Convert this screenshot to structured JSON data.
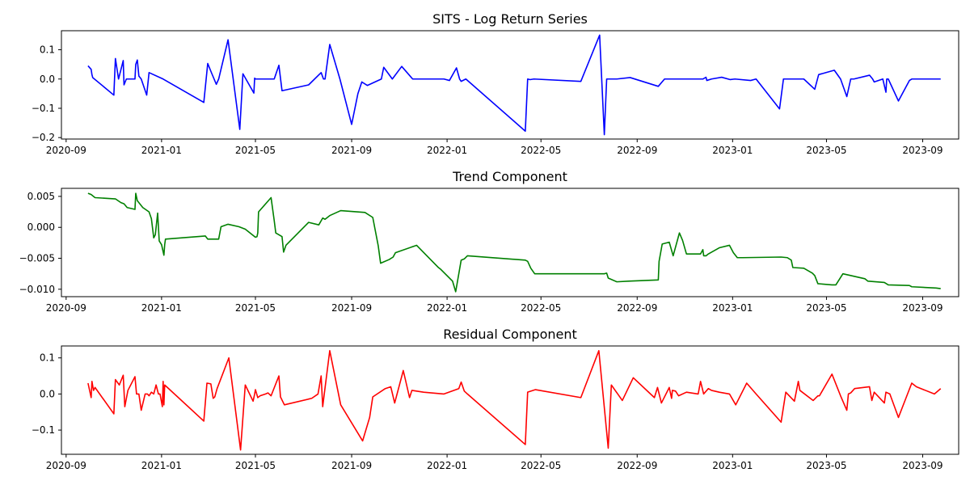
{
  "chart_data": [
    {
      "type": "line",
      "title": "SITS - Log Return Series",
      "color": "#0000ff",
      "xlim": [
        "2020-08-26",
        "2023-10-17"
      ],
      "ylim": [
        -0.205,
        0.165
      ],
      "yticks": [
        -0.2,
        -0.1,
        0.0,
        0.1
      ],
      "ytick_labels": [
        "−0.2",
        "−0.1",
        "0.0",
        "0.1"
      ],
      "xticks": [
        "2020-09-01",
        "2021-01-01",
        "2021-05-01",
        "2021-09-01",
        "2022-01-01",
        "2022-05-01",
        "2022-09-01",
        "2023-01-01",
        "2023-05-01",
        "2023-09-01"
      ],
      "xtick_labels": [
        "2020-09",
        "2021-01",
        "2021-05",
        "2021-09",
        "2022-01",
        "2022-05",
        "2022-09",
        "2023-01",
        "2023-05",
        "2023-09"
      ],
      "x": [
        "2020-09-29",
        "2020-10-03",
        "2020-10-04",
        "2020-10-05",
        "2020-11-01",
        "2020-11-03",
        "2020-11-07",
        "2020-11-13",
        "2020-11-14",
        "2020-11-17",
        "2020-11-28",
        "2020-11-29",
        "2020-12-01",
        "2020-12-03",
        "2020-12-06",
        "2020-12-13",
        "2020-12-16",
        "2021-01-03",
        "2021-02-24",
        "2021-03-01",
        "2021-03-06",
        "2021-03-12",
        "2021-03-15",
        "2021-03-27",
        "2021-04-11",
        "2021-04-15",
        "2021-04-29",
        "2021-04-30",
        "2021-05-01",
        "2021-05-25",
        "2021-05-31",
        "2021-06-04",
        "2021-07-08",
        "2021-07-24",
        "2021-07-27",
        "2021-07-29",
        "2021-08-04",
        "2021-08-17",
        "2021-09-01",
        "2021-09-09",
        "2021-09-14",
        "2021-09-21",
        "2021-10-09",
        "2021-10-12",
        "2021-10-23",
        "2021-11-04",
        "2021-11-18",
        "2021-12-28",
        "2022-01-04",
        "2022-01-13",
        "2022-01-17",
        "2022-01-19",
        "2022-01-25",
        "2022-04-11",
        "2022-04-14",
        "2022-04-17",
        "2022-04-22",
        "2022-06-21",
        "2022-07-15",
        "2022-07-21",
        "2022-07-24",
        "2022-08-06",
        "2022-08-23",
        "2022-09-28",
        "2022-10-06",
        "2022-10-22",
        "2022-11-24",
        "2022-11-28",
        "2022-11-29",
        "2022-12-05",
        "2022-12-18",
        "2022-12-29",
        "2023-01-04",
        "2023-01-24",
        "2023-01-31",
        "2023-03-02",
        "2023-03-07",
        "2023-04-02",
        "2023-04-16",
        "2023-04-20",
        "2023-04-21",
        "2023-05-11",
        "2023-05-19",
        "2023-05-27",
        "2023-06-01",
        "2023-06-05",
        "2023-06-25",
        "2023-06-29",
        "2023-07-01",
        "2023-07-12",
        "2023-07-16",
        "2023-07-17",
        "2023-07-19",
        "2023-08-01",
        "2023-08-15",
        "2023-08-18",
        "2023-09-18",
        "2023-09-24"
      ],
      "y": [
        0.045,
        0.033,
        0.015,
        0.005,
        -0.055,
        0.07,
        0.0,
        0.063,
        -0.02,
        0.0,
        0.0,
        0.05,
        0.065,
        0.01,
        0.0,
        -0.055,
        0.022,
        0.0,
        -0.08,
        0.053,
        0.02,
        -0.018,
        0.0,
        0.134,
        -0.172,
        0.018,
        -0.048,
        0.003,
        0.0,
        0.0,
        0.047,
        -0.04,
        -0.02,
        0.022,
        0.0,
        0.0,
        0.118,
        0.0,
        -0.155,
        -0.05,
        -0.01,
        -0.022,
        0.0,
        0.04,
        0.0,
        0.043,
        0.0,
        0.0,
        -0.005,
        0.038,
        0.0,
        -0.008,
        0.0,
        -0.178,
        0.0,
        -0.002,
        0.0,
        -0.008,
        0.15,
        -0.19,
        0.0,
        0.0,
        0.005,
        -0.025,
        0.0,
        0.0,
        0.0,
        0.006,
        -0.005,
        0.0,
        0.006,
        -0.002,
        0.0,
        -0.005,
        0.0,
        -0.102,
        0.0,
        0.0,
        -0.035,
        0.005,
        0.015,
        0.03,
        0.0,
        -0.06,
        0.0,
        0.0,
        0.013,
        0.0,
        -0.01,
        0.0,
        -0.045,
        0.0,
        0.0,
        -0.075,
        -0.005,
        0.0,
        0.0,
        0.0
      ]
    },
    {
      "type": "line",
      "title": "Trend Component",
      "color": "#008000",
      "xlim": [
        "2020-08-26",
        "2023-10-17"
      ],
      "ylim": [
        -0.0112,
        0.0063
      ],
      "yticks": [
        -0.01,
        -0.005,
        0.0,
        0.005
      ],
      "ytick_labels": [
        "−0.010",
        "−0.005",
        "0.000",
        "0.005"
      ],
      "xticks": [
        "2020-09-01",
        "2021-01-01",
        "2021-05-01",
        "2021-09-01",
        "2022-01-01",
        "2022-05-01",
        "2022-09-01",
        "2023-01-01",
        "2023-05-01",
        "2023-09-01"
      ],
      "xtick_labels": [
        "2020-09",
        "2021-01",
        "2021-05",
        "2021-09",
        "2022-01",
        "2022-05",
        "2022-09",
        "2023-01",
        "2023-05",
        "2023-09"
      ],
      "x": [
        "2020-09-29",
        "2020-10-03",
        "2020-10-06",
        "2020-10-08",
        "2020-11-03",
        "2020-11-10",
        "2020-11-14",
        "2020-11-18",
        "2020-11-28",
        "2020-11-29",
        "2020-12-01",
        "2020-12-08",
        "2020-12-16",
        "2020-12-19",
        "2020-12-22",
        "2020-12-24",
        "2020-12-27",
        "2020-12-29",
        "2021-01-01",
        "2021-01-04",
        "2021-01-05",
        "2021-01-06",
        "2021-02-26",
        "2021-03-01",
        "2021-03-15",
        "2021-03-18",
        "2021-03-27",
        "2021-04-10",
        "2021-04-18",
        "2021-05-01",
        "2021-05-03",
        "2021-05-04",
        "2021-05-05",
        "2021-05-21",
        "2021-05-25",
        "2021-05-27",
        "2021-06-04",
        "2021-06-06",
        "2021-06-09",
        "2021-07-08",
        "2021-07-21",
        "2021-07-26",
        "2021-07-29",
        "2021-08-04",
        "2021-08-18",
        "2021-09-18",
        "2021-09-28",
        "2021-10-05",
        "2021-10-08",
        "2021-10-19",
        "2021-10-24",
        "2021-10-27",
        "2021-11-23",
        "2021-12-21",
        "2021-12-24",
        "2022-01-08",
        "2022-01-12",
        "2022-01-19",
        "2022-01-23",
        "2022-01-27",
        "2022-04-11",
        "2022-04-14",
        "2022-04-18",
        "2022-04-23",
        "2022-07-21",
        "2022-07-24",
        "2022-07-26",
        "2022-08-06",
        "2022-08-21",
        "2022-09-28",
        "2022-09-29",
        "2022-10-03",
        "2022-10-12",
        "2022-10-17",
        "2022-10-25",
        "2022-10-29",
        "2022-11-03",
        "2022-11-21",
        "2022-11-24",
        "2022-11-25",
        "2022-11-28",
        "2022-12-01",
        "2022-12-15",
        "2022-12-28",
        "2023-01-02",
        "2023-01-07",
        "2023-01-14",
        "2023-03-04",
        "2023-03-12",
        "2023-03-17",
        "2023-03-19",
        "2023-04-02",
        "2023-04-13",
        "2023-04-16",
        "2023-04-20",
        "2023-05-08",
        "2023-05-13",
        "2023-05-18",
        "2023-05-22",
        "2023-06-19",
        "2023-06-23",
        "2023-07-14",
        "2023-07-19",
        "2023-08-15",
        "2023-08-18",
        "2023-09-18",
        "2023-09-24"
      ],
      "y": [
        0.0055,
        0.0053,
        0.005,
        0.0048,
        0.0046,
        0.004,
        0.0038,
        0.0032,
        0.0029,
        0.0055,
        0.0043,
        0.0032,
        0.0025,
        0.0014,
        -0.0017,
        -0.0012,
        0.0023,
        -0.0022,
        -0.0028,
        -0.0045,
        -0.0028,
        -0.0019,
        -0.0014,
        -0.0019,
        -0.0019,
        0.0001,
        0.0005,
        0.0001,
        -0.0003,
        -0.0016,
        -0.0015,
        -0.0009,
        0.0025,
        0.0048,
        0.0011,
        -0.0009,
        -0.0015,
        -0.004,
        -0.0029,
        0.0008,
        0.0004,
        0.0015,
        0.0013,
        0.0019,
        0.0027,
        0.0024,
        0.0016,
        -0.003,
        -0.0058,
        -0.0052,
        -0.0048,
        -0.0041,
        -0.0029,
        -0.0065,
        -0.0068,
        -0.0087,
        -0.0104,
        -0.0053,
        -0.0051,
        -0.0046,
        -0.0053,
        -0.0055,
        -0.0066,
        -0.0075,
        -0.0075,
        -0.0074,
        -0.0082,
        -0.0088,
        -0.0087,
        -0.0085,
        -0.0055,
        -0.0027,
        -0.0024,
        -0.0046,
        -0.0009,
        -0.0021,
        -0.0043,
        -0.0043,
        -0.0036,
        -0.0046,
        -0.0046,
        -0.0043,
        -0.0033,
        -0.0029,
        -0.0041,
        -0.0049,
        -0.0049,
        -0.0048,
        -0.0049,
        -0.0053,
        -0.0065,
        -0.0066,
        -0.0074,
        -0.0078,
        -0.0091,
        -0.0093,
        -0.0093,
        -0.0083,
        -0.0075,
        -0.0083,
        -0.0087,
        -0.0089,
        -0.0093,
        -0.0094,
        -0.0096,
        -0.0098,
        -0.0099
      ]
    },
    {
      "type": "line",
      "title": "Residual Component",
      "color": "#ff0000",
      "xlim": [
        "2020-08-26",
        "2023-10-17"
      ],
      "ylim": [
        -0.167,
        0.133
      ],
      "yticks": [
        -0.1,
        0.0,
        0.1
      ],
      "ytick_labels": [
        "−0.1",
        "0.0",
        "0.1"
      ],
      "xticks": [
        "2020-09-01",
        "2021-01-01",
        "2021-05-01",
        "2021-09-01",
        "2022-01-01",
        "2022-05-01",
        "2022-09-01",
        "2023-01-01",
        "2023-05-01",
        "2023-09-01"
      ],
      "xtick_labels": [
        "2020-09",
        "2021-01",
        "2021-05",
        "2021-09",
        "2022-01",
        "2022-05",
        "2022-09",
        "2023-01",
        "2023-05",
        "2023-09"
      ],
      "x": [
        "2020-09-29",
        "2020-10-03",
        "2020-10-04",
        "2020-10-06",
        "2020-10-08",
        "2020-11-01",
        "2020-11-03",
        "2020-11-08",
        "2020-11-13",
        "2020-11-15",
        "2020-11-19",
        "2020-11-28",
        "2020-11-30",
        "2020-12-03",
        "2020-12-06",
        "2020-12-11",
        "2020-12-14",
        "2020-12-16",
        "2020-12-19",
        "2020-12-22",
        "2020-12-25",
        "2020-12-28",
        "2020-12-30",
        "2021-01-02",
        "2021-01-03",
        "2021-01-04",
        "2021-01-05",
        "2021-02-24",
        "2021-02-28",
        "2021-03-05",
        "2021-03-08",
        "2021-03-10",
        "2021-03-13",
        "2021-03-28",
        "2021-04-12",
        "2021-04-18",
        "2021-04-28",
        "2021-04-30",
        "2021-05-01",
        "2021-05-04",
        "2021-05-07",
        "2021-05-14",
        "2021-05-17",
        "2021-05-21",
        "2021-05-31",
        "2021-06-02",
        "2021-06-07",
        "2021-07-12",
        "2021-07-20",
        "2021-07-24",
        "2021-07-26",
        "2021-07-28",
        "2021-08-04",
        "2021-08-18",
        "2021-09-15",
        "2021-09-24",
        "2021-09-28",
        "2021-10-14",
        "2021-10-21",
        "2021-10-26",
        "2021-11-06",
        "2021-11-14",
        "2021-11-17",
        "2021-12-02",
        "2021-12-28",
        "2022-01-16",
        "2022-01-19",
        "2022-01-23",
        "2022-01-27",
        "2022-04-11",
        "2022-04-14",
        "2022-04-24",
        "2022-06-21",
        "2022-07-14",
        "2022-07-26",
        "2022-07-30",
        "2022-08-13",
        "2022-08-27",
        "2022-09-23",
        "2022-09-27",
        "2022-10-02",
        "2022-10-12",
        "2022-10-15",
        "2022-10-16",
        "2022-10-20",
        "2022-10-24",
        "2022-11-03",
        "2022-11-18",
        "2022-11-21",
        "2022-11-25",
        "2022-12-01",
        "2022-12-05",
        "2022-12-15",
        "2022-12-28",
        "2023-01-05",
        "2023-01-19",
        "2023-01-31",
        "2023-03-04",
        "2023-03-10",
        "2023-03-21",
        "2023-03-26",
        "2023-03-28",
        "2023-04-14",
        "2023-04-20",
        "2023-04-22",
        "2023-05-08",
        "2023-05-19",
        "2023-05-27",
        "2023-05-29",
        "2023-06-01",
        "2023-06-06",
        "2023-06-25",
        "2023-06-28",
        "2023-07-01",
        "2023-07-14",
        "2023-07-16",
        "2023-07-21",
        "2023-08-01",
        "2023-08-18",
        "2023-08-24",
        "2023-09-16",
        "2023-09-24"
      ],
      "y": [
        0.03,
        -0.01,
        0.035,
        0.01,
        0.018,
        -0.055,
        0.04,
        0.025,
        0.052,
        -0.035,
        0.01,
        0.048,
        0.0,
        0.0,
        -0.045,
        0.0,
        0.0,
        -0.005,
        0.005,
        0.0,
        0.025,
        0.0,
        0.0,
        -0.035,
        0.035,
        -0.03,
        0.025,
        -0.075,
        0.03,
        0.028,
        -0.012,
        -0.008,
        0.015,
        0.1,
        -0.155,
        0.025,
        -0.02,
        0.0,
        0.012,
        -0.01,
        -0.005,
        0.0,
        0.003,
        -0.005,
        0.05,
        -0.008,
        -0.03,
        -0.012,
        0.0,
        0.05,
        -0.035,
        0.0,
        0.12,
        -0.03,
        -0.13,
        -0.065,
        -0.008,
        0.015,
        0.02,
        -0.025,
        0.065,
        -0.01,
        0.01,
        0.005,
        0.0,
        0.015,
        0.033,
        0.008,
        0.0,
        -0.14,
        0.005,
        0.012,
        -0.01,
        0.12,
        -0.15,
        0.025,
        -0.018,
        0.045,
        -0.01,
        0.018,
        -0.025,
        0.018,
        -0.012,
        0.01,
        0.008,
        -0.005,
        0.005,
        0.0,
        0.035,
        0.0,
        0.015,
        0.01,
        0.005,
        0.0,
        -0.03,
        0.03,
        0.0,
        -0.078,
        0.005,
        -0.02,
        0.035,
        0.01,
        -0.018,
        -0.005,
        -0.005,
        0.055,
        -0.005,
        -0.045,
        0.0,
        0.003,
        0.015,
        0.02,
        -0.018,
        0.005,
        -0.025,
        0.005,
        0.0,
        -0.065,
        0.03,
        0.02,
        0.0,
        0.015
      ]
    }
  ]
}
